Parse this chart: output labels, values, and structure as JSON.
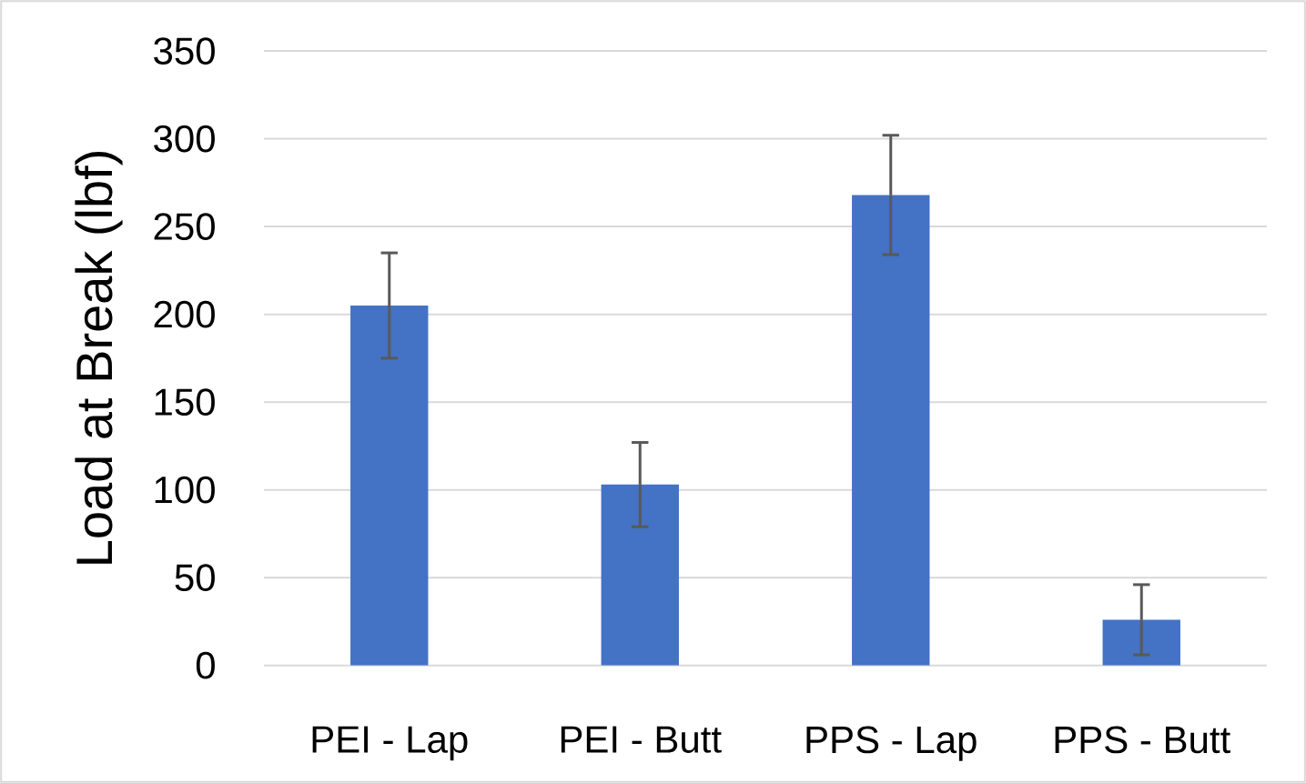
{
  "chart_data": {
    "type": "bar",
    "ylabel": "Load at Break (lbf)",
    "categories": [
      "PEI - Lap",
      "PEI - Butt",
      "PPS - Lap",
      "PPS - Butt"
    ],
    "values": [
      205,
      103,
      268,
      26
    ],
    "errors": [
      30,
      24,
      34,
      20
    ],
    "color": "#4472c4",
    "ylim": [
      0,
      350
    ],
    "yticks": [
      0,
      50,
      100,
      150,
      200,
      250,
      300,
      350
    ],
    "grid": "y"
  }
}
